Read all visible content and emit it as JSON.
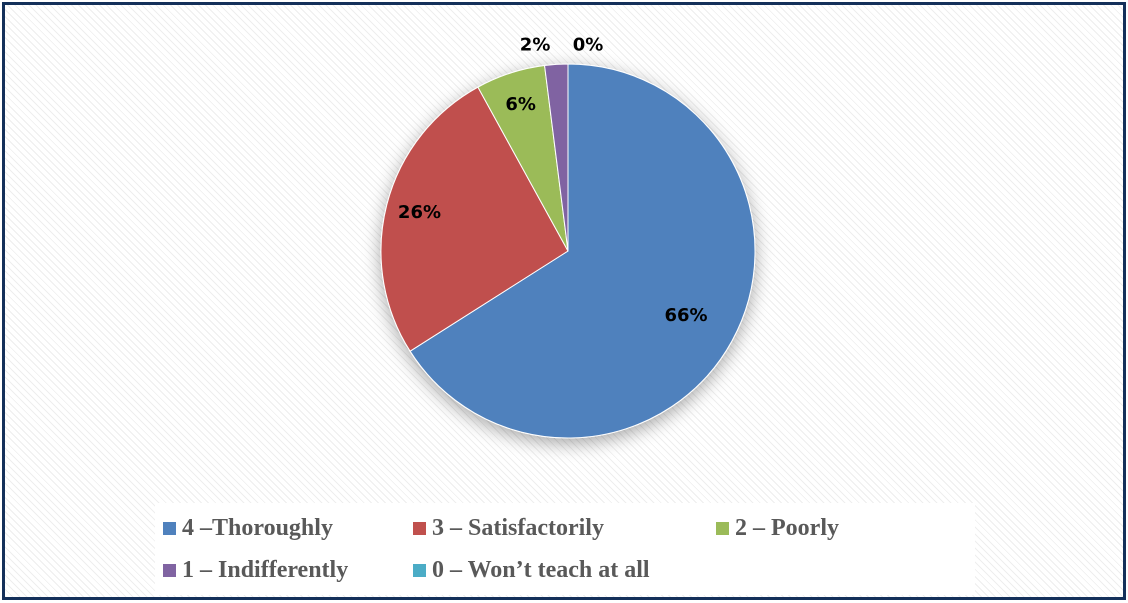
{
  "chart_data": {
    "type": "pie",
    "series": [
      {
        "name": "4 –Thoroughly",
        "value": 66,
        "label": "66%",
        "color": "#4f81bd"
      },
      {
        "name": "3 – Satisfactorily",
        "value": 26,
        "label": "26%",
        "color": "#c0504d"
      },
      {
        "name": "2 – Poorly",
        "value": 6,
        "label": "6%",
        "color": "#9bbb59"
      },
      {
        "name": "1 – Indifferently",
        "value": 2,
        "label": "2%",
        "color": "#8064a2"
      },
      {
        "name": "0 – Won’t teach at all",
        "value": 0,
        "label": "0%",
        "color": "#4bacc6"
      }
    ],
    "legend_position": "bottom",
    "data_labels": true
  }
}
